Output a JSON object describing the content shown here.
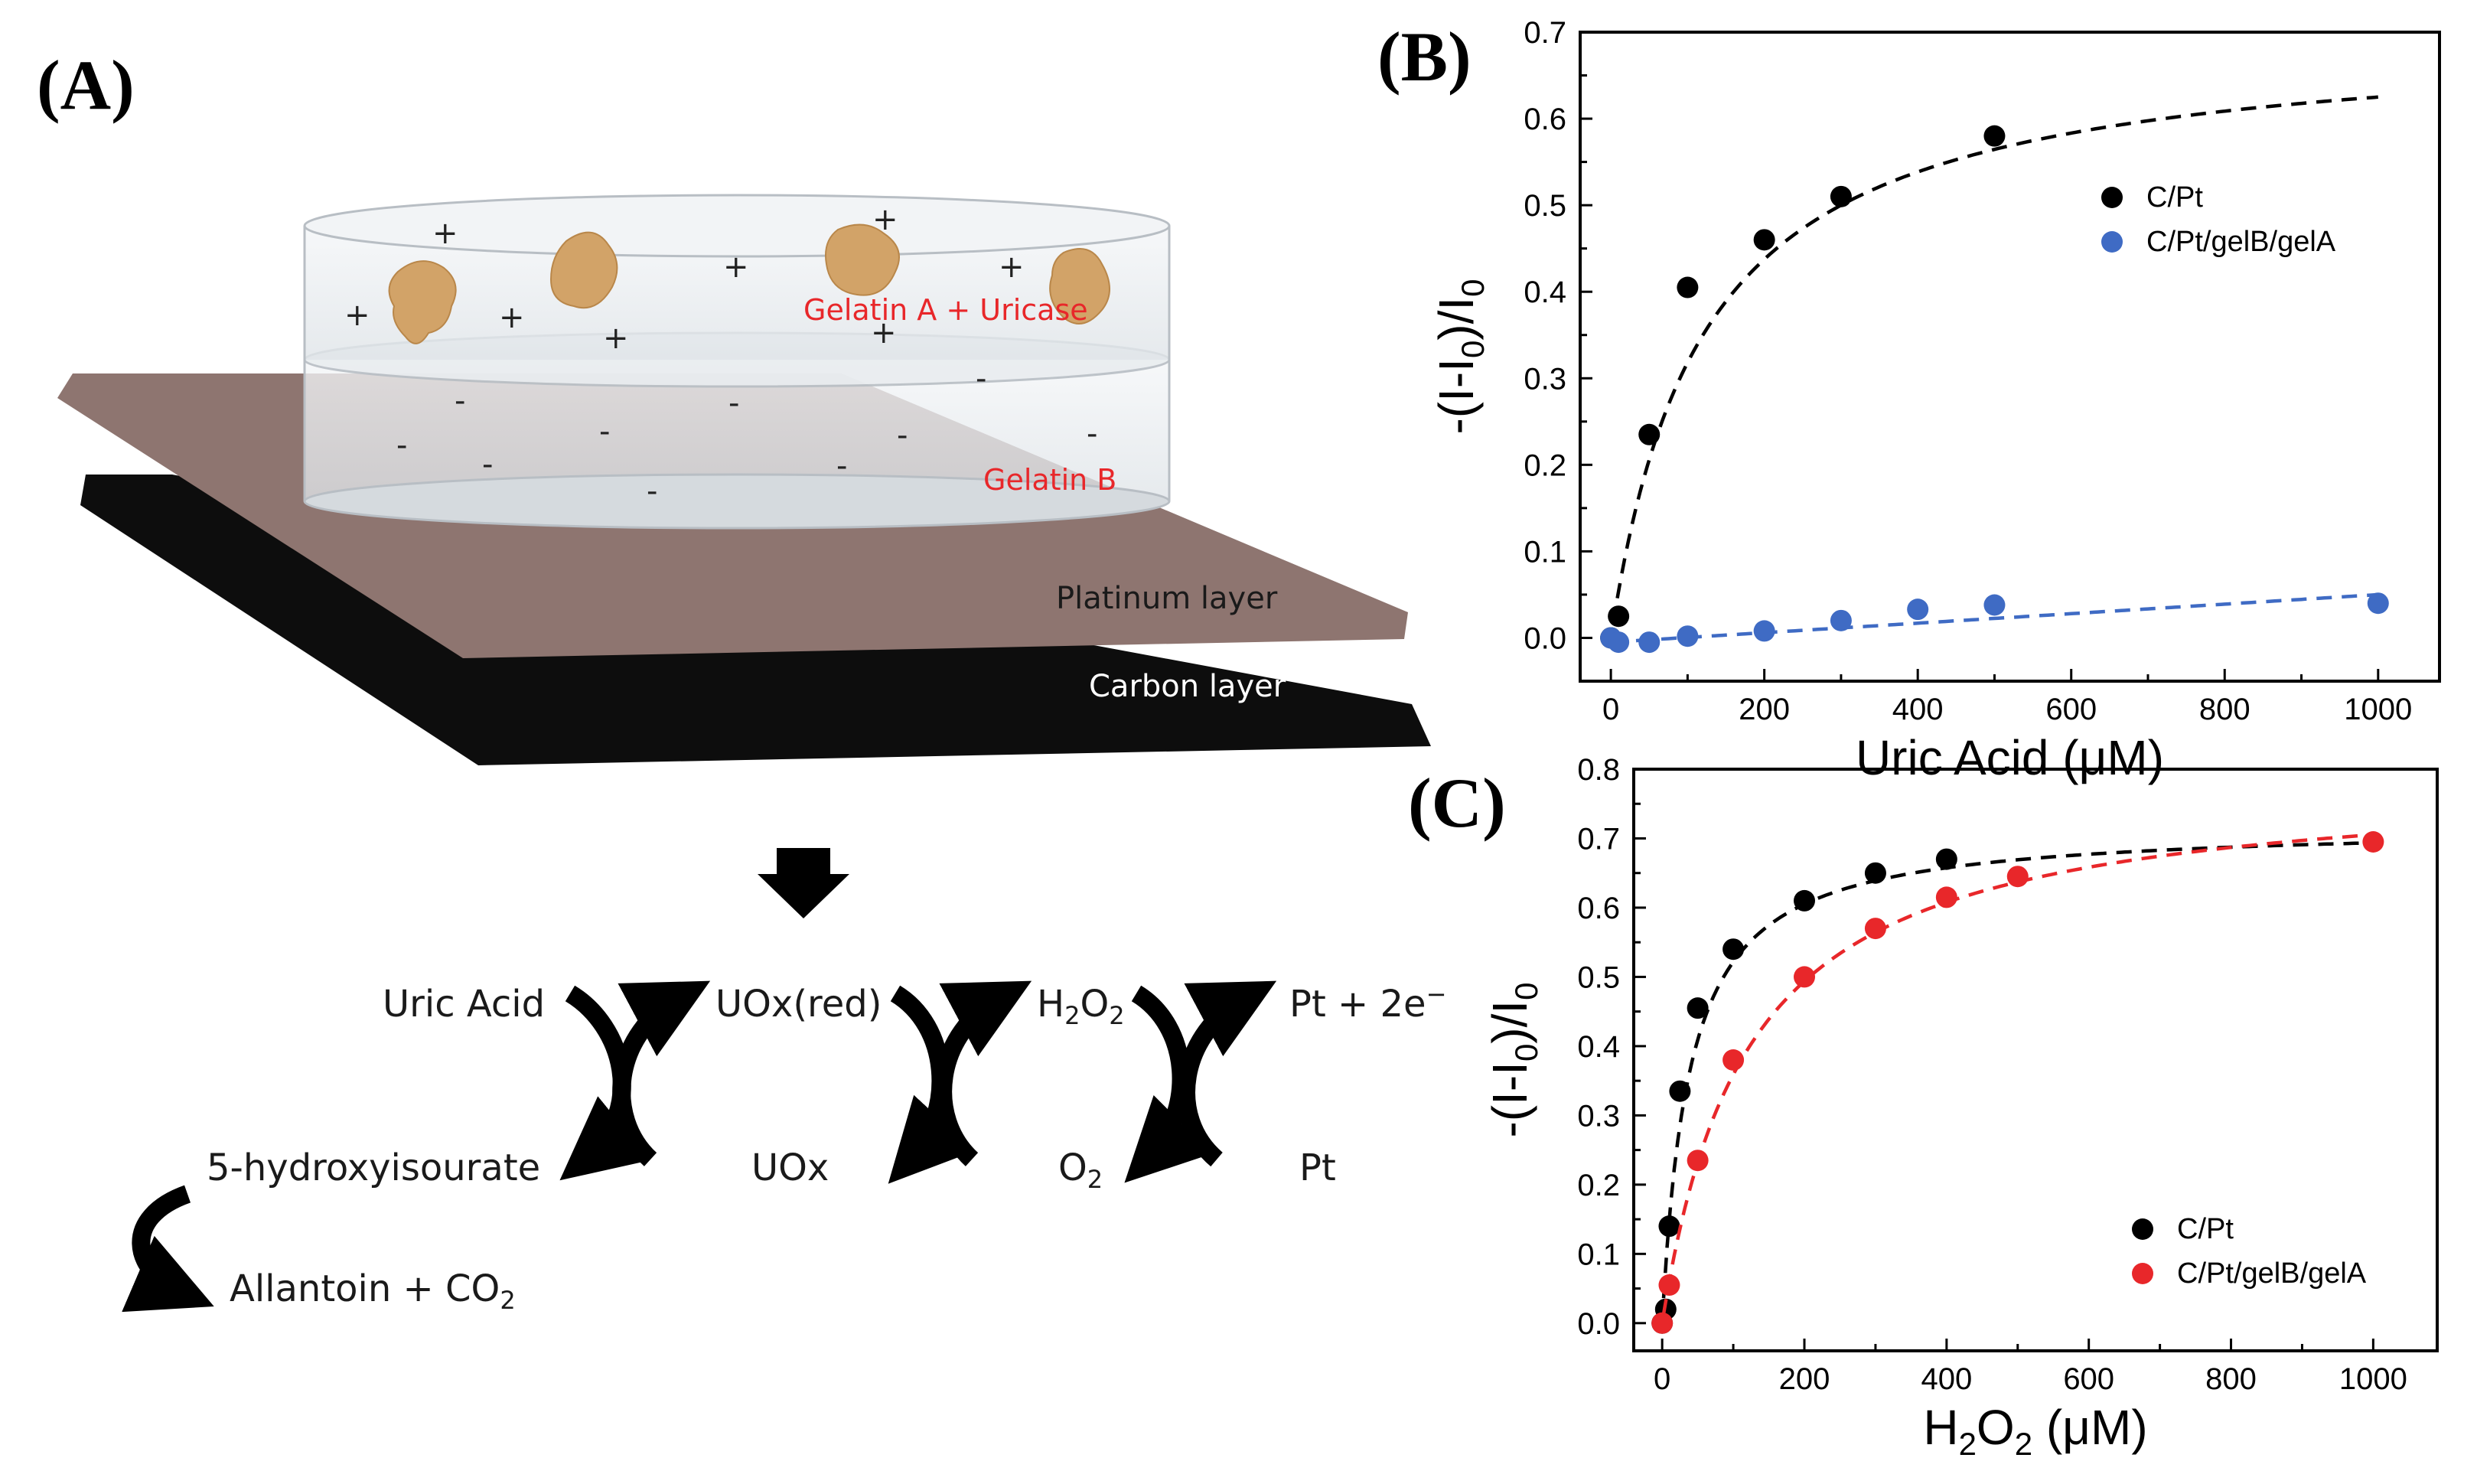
{
  "panels": {
    "A": {
      "label": "(A)",
      "layers": {
        "gelatin_a": "Gelatin A + Uricase",
        "gelatin_b": "Gelatin B",
        "platinum": "Platinum layer",
        "carbon": "Carbon layer"
      },
      "charges": {
        "positive": "+",
        "negative": "-"
      },
      "reaction": {
        "uric_acid": "Uric Acid",
        "uox_red": "UOx(red)",
        "h2o2_main": "H",
        "h2o2_sub": "2",
        "h2o2_end": "O",
        "h2o2_end_sub": "2",
        "pt_2e": "Pt + 2e",
        "pt_2e_sup": "−",
        "hydroxyisourate": "5-hydroxyisourate",
        "uox": "UOx",
        "o2_main": "O",
        "o2_sub": "2",
        "pt": "Pt",
        "allantoin": "Allantoin + CO",
        "allantoin_sub": "2"
      }
    },
    "B": {
      "label": "(B)"
    },
    "C": {
      "label": "(C)"
    }
  },
  "chart_data": [
    {
      "type": "scatter",
      "panel": "B",
      "title": "",
      "xlabel_main": "Uric Acid (",
      "xlabel_mu": "μ",
      "xlabel_end": "M)",
      "ylabel_a": "-(I-I",
      "ylabel_sub": "0",
      "ylabel_b": ")/I",
      "ylabel_sub2": "0",
      "xlim": [
        -40,
        1080
      ],
      "ylim": [
        -0.05,
        0.7
      ],
      "xticks": [
        0,
        200,
        400,
        600,
        800,
        1000
      ],
      "yticks": [
        0.0,
        0.1,
        0.2,
        0.3,
        0.4,
        0.5,
        0.6,
        0.7
      ],
      "xticklabels": [
        "0",
        "200",
        "400",
        "600",
        "800",
        "1000"
      ],
      "yticklabels": [
        "0.0",
        "0.1",
        "0.2",
        "0.3",
        "0.4",
        "0.5",
        "0.6",
        "0.7"
      ],
      "legend_position": "upper-right",
      "series": [
        {
          "name": "C/Pt",
          "color": "#000000",
          "points": [
            [
              0,
              0.0
            ],
            [
              10,
              0.025
            ],
            [
              50,
              0.235
            ],
            [
              100,
              0.405
            ],
            [
              200,
              0.46
            ],
            [
              300,
              0.51
            ],
            [
              500,
              0.58
            ]
          ],
          "fit": {
            "kind": "hyperbola",
            "vmax": 0.7,
            "km": 120,
            "x0": 3,
            "x1": 1000,
            "color": "#000000"
          }
        },
        {
          "name": "C/Pt/gelB/gelA",
          "color": "#3f6bc4",
          "points": [
            [
              0,
              0.0
            ],
            [
              10,
              -0.005
            ],
            [
              50,
              -0.005
            ],
            [
              100,
              0.002
            ],
            [
              200,
              0.008
            ],
            [
              300,
              0.02
            ],
            [
              400,
              0.033
            ],
            [
              500,
              0.038
            ],
            [
              1000,
              0.04
            ]
          ],
          "fit": {
            "kind": "linear",
            "slope": 5.5e-05,
            "intercept": -0.005,
            "x0": 0,
            "x1": 1000,
            "color": "#3f6bc4"
          }
        }
      ]
    },
    {
      "type": "scatter",
      "panel": "C",
      "title": "",
      "xlabel_main": "H",
      "xlabel_sub": "2",
      "xlabel_mid": "O",
      "xlabel_sub2": "2",
      "xlabel_mu_open": " (",
      "xlabel_mu": "μ",
      "xlabel_end": "M)",
      "ylabel_a": "-(I-I",
      "ylabel_sub": "0",
      "ylabel_b": ")/I",
      "ylabel_sub2": "0",
      "xlim": [
        -40,
        1090
      ],
      "ylim": [
        -0.04,
        0.8
      ],
      "xticks": [
        0,
        200,
        400,
        600,
        800,
        1000
      ],
      "yticks": [
        0.0,
        0.1,
        0.2,
        0.3,
        0.4,
        0.5,
        0.6,
        0.7,
        0.8
      ],
      "xticklabels": [
        "0",
        "200",
        "400",
        "600",
        "800",
        "1000"
      ],
      "yticklabels": [
        "0.0",
        "0.1",
        "0.2",
        "0.3",
        "0.4",
        "0.5",
        "0.6",
        "0.7",
        "0.8"
      ],
      "legend_position": "lower-right",
      "series": [
        {
          "name": "C/Pt",
          "color": "#000000",
          "points": [
            [
              0,
              0.0
            ],
            [
              5,
              0.02
            ],
            [
              10,
              0.14
            ],
            [
              25,
              0.335
            ],
            [
              50,
              0.455
            ],
            [
              100,
              0.54
            ],
            [
              200,
              0.61
            ],
            [
              300,
              0.65
            ],
            [
              400,
              0.67
            ]
          ],
          "fit": {
            "kind": "hyperbola",
            "vmax": 0.72,
            "km": 38,
            "x0": 2,
            "x1": 1000,
            "color": "#000000"
          }
        },
        {
          "name": "C/Pt/gelB/gelA",
          "color": "#e8272a",
          "points": [
            [
              0,
              0.0
            ],
            [
              10,
              0.055
            ],
            [
              50,
              0.235
            ],
            [
              100,
              0.38
            ],
            [
              200,
              0.5
            ],
            [
              300,
              0.57
            ],
            [
              400,
              0.615
            ],
            [
              500,
              0.645
            ],
            [
              1000,
              0.695
            ]
          ],
          "fit": {
            "kind": "hyperbola",
            "vmax": 0.79,
            "km": 120,
            "x0": 2,
            "x1": 1000,
            "color": "#e8272a"
          }
        }
      ]
    }
  ]
}
